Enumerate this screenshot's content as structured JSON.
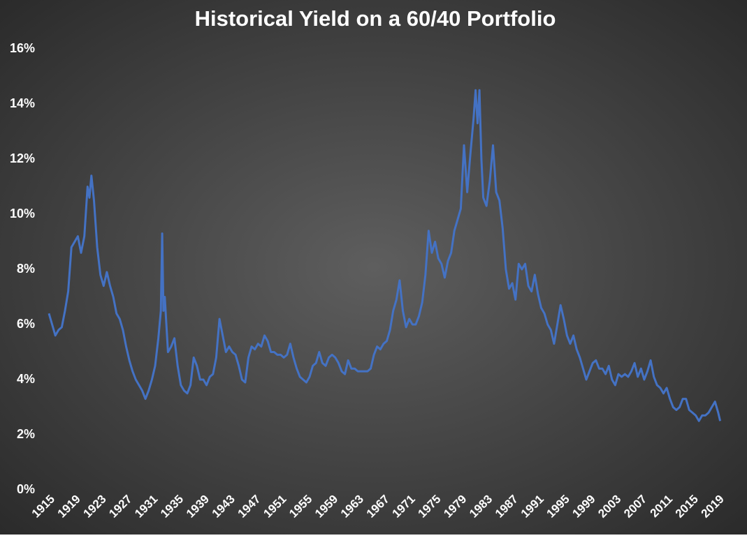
{
  "chart_data": {
    "type": "line",
    "title": "Historical Yield on a 60/40 Portfolio",
    "color": "#4472c4",
    "grid": false,
    "xlim": [
      1915,
      2020
    ],
    "xticks": [
      1915,
      1919,
      1923,
      1927,
      1931,
      1935,
      1939,
      1943,
      1947,
      1951,
      1955,
      1959,
      1963,
      1967,
      1971,
      1975,
      1979,
      1983,
      1987,
      1991,
      1995,
      1999,
      2003,
      2007,
      2011,
      2015,
      2019
    ],
    "ylim": [
      0,
      16
    ],
    "yticks": [
      {
        "value": 0,
        "label": "0%"
      },
      {
        "value": 2,
        "label": "2%"
      },
      {
        "value": 4,
        "label": "4%"
      },
      {
        "value": 6,
        "label": "6%"
      },
      {
        "value": 8,
        "label": "8%"
      },
      {
        "value": 10,
        "label": "10%"
      },
      {
        "value": 12,
        "label": "12%"
      },
      {
        "value": 14,
        "label": "14%"
      },
      {
        "value": 16,
        "label": "16%"
      }
    ],
    "x": [
      1915,
      1915.5,
      1916,
      1916.5,
      1917,
      1917.5,
      1918,
      1918.5,
      1919,
      1919.5,
      1920,
      1920.5,
      1921,
      1921.3,
      1921.6,
      1922,
      1922.5,
      1923,
      1923.5,
      1924,
      1924.5,
      1925,
      1925.5,
      1926,
      1926.5,
      1927,
      1927.5,
      1928,
      1928.5,
      1929,
      1929.5,
      1930,
      1930.5,
      1931,
      1931.5,
      1932,
      1932.4,
      1932.6,
      1932.8,
      1933,
      1933.5,
      1934,
      1934.5,
      1935,
      1935.5,
      1936,
      1936.5,
      1937,
      1937.5,
      1938,
      1938.5,
      1939,
      1939.5,
      1940,
      1940.5,
      1941,
      1941.5,
      1942,
      1942.5,
      1943,
      1943.5,
      1944,
      1944.5,
      1945,
      1945.5,
      1946,
      1946.5,
      1947,
      1947.5,
      1948,
      1948.5,
      1949,
      1949.5,
      1950,
      1950.5,
      1951,
      1951.5,
      1952,
      1952.5,
      1953,
      1953.5,
      1954,
      1954.5,
      1955,
      1955.5,
      1956,
      1956.5,
      1957,
      1957.5,
      1958,
      1958.5,
      1959,
      1959.5,
      1960,
      1960.5,
      1961,
      1961.5,
      1962,
      1962.5,
      1963,
      1963.5,
      1964,
      1964.5,
      1965,
      1965.5,
      1966,
      1966.5,
      1967,
      1967.5,
      1968,
      1968.5,
      1969,
      1969.5,
      1970,
      1970.5,
      1971,
      1971.5,
      1972,
      1972.5,
      1973,
      1973.5,
      1974,
      1974.5,
      1975,
      1975.5,
      1976,
      1976.5,
      1977,
      1977.5,
      1978,
      1978.5,
      1979,
      1979.5,
      1980,
      1980.5,
      1981,
      1981.3,
      1981.6,
      1981.9,
      1982.2,
      1982.5,
      1983,
      1983.5,
      1984,
      1984.5,
      1985,
      1985.5,
      1986,
      1986.5,
      1987,
      1987.5,
      1988,
      1988.5,
      1989,
      1989.5,
      1990,
      1990.5,
      1991,
      1991.5,
      1992,
      1992.5,
      1993,
      1993.5,
      1994,
      1994.5,
      1995,
      1995.5,
      1996,
      1996.5,
      1997,
      1997.5,
      1998,
      1998.5,
      1999,
      1999.5,
      2000,
      2000.5,
      2001,
      2001.5,
      2002,
      2002.5,
      2003,
      2003.5,
      2004,
      2004.5,
      2005,
      2005.5,
      2006,
      2006.5,
      2007,
      2007.5,
      2008,
      2008.5,
      2009,
      2009.5,
      2010,
      2010.5,
      2011,
      2011.5,
      2012,
      2012.5,
      2013,
      2013.5,
      2014,
      2014.5,
      2015,
      2015.5,
      2016,
      2016.5,
      2017,
      2017.5,
      2018,
      2018.5,
      2019,
      2019.3
    ],
    "values": [
      6.4,
      6.0,
      5.6,
      5.8,
      5.9,
      6.5,
      7.2,
      8.8,
      9.0,
      9.2,
      8.6,
      9.2,
      11.0,
      10.6,
      11.4,
      10.5,
      8.8,
      7.8,
      7.4,
      7.9,
      7.4,
      7.0,
      6.4,
      6.2,
      5.8,
      5.2,
      4.7,
      4.3,
      4.0,
      3.8,
      3.6,
      3.3,
      3.6,
      4.0,
      4.5,
      5.5,
      6.5,
      9.3,
      6.5,
      7.0,
      5.0,
      5.2,
      5.5,
      4.5,
      3.8,
      3.6,
      3.5,
      3.8,
      4.8,
      4.5,
      4.0,
      4.0,
      3.8,
      4.1,
      4.2,
      4.8,
      6.2,
      5.6,
      5.0,
      5.2,
      5.0,
      4.9,
      4.5,
      4.0,
      3.9,
      4.8,
      5.2,
      5.1,
      5.3,
      5.2,
      5.6,
      5.4,
      5.0,
      5.0,
      4.9,
      4.9,
      4.8,
      4.9,
      5.3,
      4.8,
      4.4,
      4.1,
      4.0,
      3.9,
      4.1,
      4.5,
      4.6,
      5.0,
      4.6,
      4.5,
      4.8,
      4.9,
      4.8,
      4.6,
      4.3,
      4.2,
      4.7,
      4.4,
      4.4,
      4.3,
      4.3,
      4.3,
      4.3,
      4.4,
      4.9,
      5.2,
      5.1,
      5.3,
      5.4,
      5.8,
      6.5,
      6.9,
      7.6,
      6.5,
      5.9,
      6.2,
      6.0,
      6.0,
      6.3,
      6.8,
      7.8,
      9.4,
      8.6,
      9.0,
      8.4,
      8.2,
      7.7,
      8.3,
      8.6,
      9.4,
      9.8,
      10.2,
      12.5,
      10.8,
      12.2,
      13.5,
      14.5,
      13.3,
      14.5,
      12.0,
      10.6,
      10.3,
      11.2,
      12.5,
      10.8,
      10.5,
      9.5,
      8.0,
      7.3,
      7.5,
      6.9,
      8.2,
      8.0,
      8.2,
      7.4,
      7.2,
      7.8,
      7.1,
      6.6,
      6.4,
      6.0,
      5.8,
      5.3,
      6.0,
      6.7,
      6.2,
      5.6,
      5.3,
      5.6,
      5.1,
      4.8,
      4.4,
      4.0,
      4.3,
      4.6,
      4.7,
      4.4,
      4.4,
      4.2,
      4.5,
      4.0,
      3.8,
      4.2,
      4.1,
      4.2,
      4.1,
      4.3,
      4.6,
      4.1,
      4.4,
      4.0,
      4.3,
      4.7,
      4.1,
      3.8,
      3.7,
      3.5,
      3.7,
      3.3,
      3.0,
      2.9,
      3.0,
      3.3,
      3.3,
      2.9,
      2.8,
      2.7,
      2.5,
      2.7,
      2.7,
      2.8,
      3.0,
      3.2,
      2.8,
      2.5
    ]
  }
}
